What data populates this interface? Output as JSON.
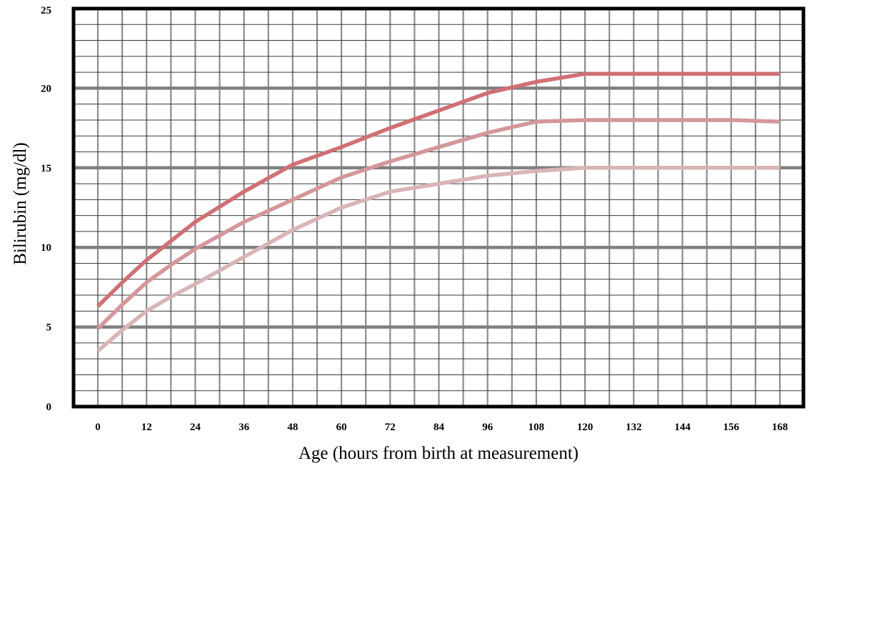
{
  "chart_data": {
    "type": "line",
    "title": "",
    "xlabel": "Age (hours from birth at measurement)",
    "ylabel": "Bilirubin (mg/dl)",
    "xlim": [
      0,
      168
    ],
    "ylim": [
      0,
      25
    ],
    "x_ticks": [
      0,
      12,
      24,
      36,
      48,
      60,
      72,
      84,
      96,
      108,
      120,
      132,
      144,
      156,
      168
    ],
    "y_ticks": [
      0,
      5,
      10,
      15,
      20,
      25
    ],
    "grid": true,
    "legend": "none",
    "series": [
      {
        "color": "#d07075",
        "x": [
          0,
          6,
          12,
          18,
          24,
          36,
          48,
          60,
          72,
          84,
          96,
          108,
          120,
          132,
          144,
          156,
          168
        ],
        "y": [
          6.3,
          7.8,
          9.2,
          10.4,
          11.6,
          13.5,
          15.2,
          16.3,
          17.5,
          18.6,
          19.7,
          20.4,
          20.9,
          20.9,
          20.9,
          20.9,
          20.9
        ]
      },
      {
        "color": "#d4979a",
        "x": [
          0,
          6,
          12,
          18,
          24,
          36,
          48,
          60,
          72,
          84,
          96,
          108,
          120,
          132,
          144,
          156,
          168
        ],
        "y": [
          4.9,
          6.4,
          7.8,
          8.9,
          9.9,
          11.6,
          13.0,
          14.4,
          15.4,
          16.3,
          17.2,
          17.9,
          18.0,
          18.0,
          18.0,
          18.0,
          17.9
        ]
      },
      {
        "color": "#d9b5b6",
        "x": [
          0,
          6,
          12,
          18,
          24,
          36,
          48,
          60,
          72,
          84,
          96,
          108,
          120,
          132,
          144,
          156,
          168
        ],
        "y": [
          3.5,
          4.8,
          6.0,
          6.9,
          7.7,
          9.4,
          11.1,
          12.5,
          13.5,
          14.0,
          14.5,
          14.8,
          15.0,
          15.0,
          15.0,
          15.0,
          15.0
        ]
      }
    ]
  }
}
